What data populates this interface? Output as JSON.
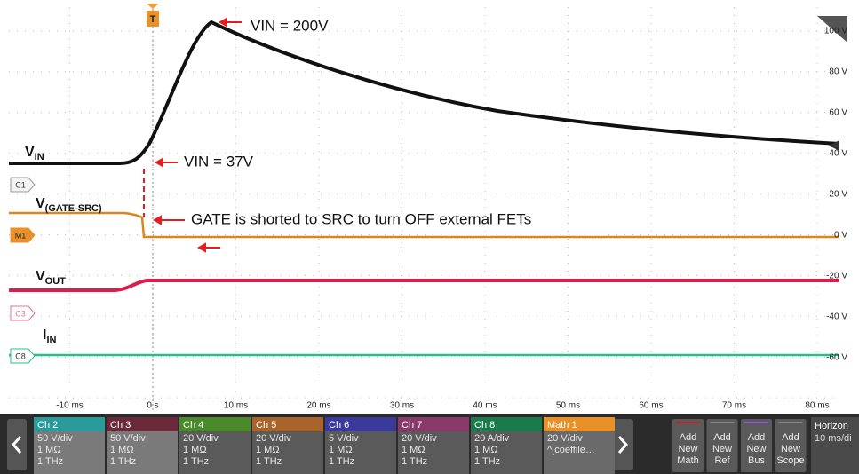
{
  "trigger": "T",
  "annotations": [
    "VIN = 200V",
    "VIN = 37V",
    "GATE is shorted to SRC to turn OFF external FETs"
  ],
  "waveform_labels": [
    {
      "main": "V",
      "sub": "IN"
    },
    {
      "main": "V",
      "sub": "(GATE-SRC)"
    },
    {
      "main": "V",
      "sub": "OUT"
    },
    {
      "main": "I",
      "sub": "IN"
    }
  ],
  "markers": [
    "C1",
    "M1",
    "C3",
    "C8"
  ],
  "x_axis_labels": [
    "-10 ms",
    "0 s",
    "10 ms",
    "20 ms",
    "30 ms",
    "40 ms",
    "50 ms",
    "60 ms",
    "70 ms",
    "80 ms"
  ],
  "y_axis_labels": [
    "100 V",
    "80 V",
    "60 V",
    "40 V",
    "20 V",
    "0 V",
    "-20 V",
    "-40 V",
    "-60 V"
  ],
  "channels": [
    {
      "name": "Ch 2",
      "lines": [
        "50 V/div",
        "1 MΩ",
        "1 THz"
      ]
    },
    {
      "name": "Ch 3",
      "lines": [
        "50 V/div",
        "1 MΩ",
        "1 THz"
      ]
    },
    {
      "name": "Ch 4",
      "lines": [
        "20 V/div",
        "1 MΩ",
        "1 THz"
      ]
    },
    {
      "name": "Ch 5",
      "lines": [
        "20 V/div",
        "1 MΩ",
        "1 THz"
      ]
    },
    {
      "name": "Ch 6",
      "lines": [
        "5 V/div",
        "1 MΩ",
        "1 THz"
      ]
    },
    {
      "name": "Ch 7",
      "lines": [
        "20 V/div",
        "1 MΩ",
        "1 THz"
      ]
    },
    {
      "name": "Ch 8",
      "lines": [
        "20 A/div",
        "1 MΩ",
        "1 THz"
      ]
    },
    {
      "name": "Math 1",
      "lines": [
        "20 V/div",
        "^[coeffile…"
      ]
    }
  ],
  "buttons": [
    [
      "Add",
      "New",
      "Math"
    ],
    [
      "Add",
      "New",
      "Ref"
    ],
    [
      "Add",
      "New",
      "Bus"
    ],
    [
      "Add",
      "New",
      "Scope"
    ]
  ],
  "horizontal": {
    "title": "Horizon",
    "scale": "10 ms/di"
  }
}
